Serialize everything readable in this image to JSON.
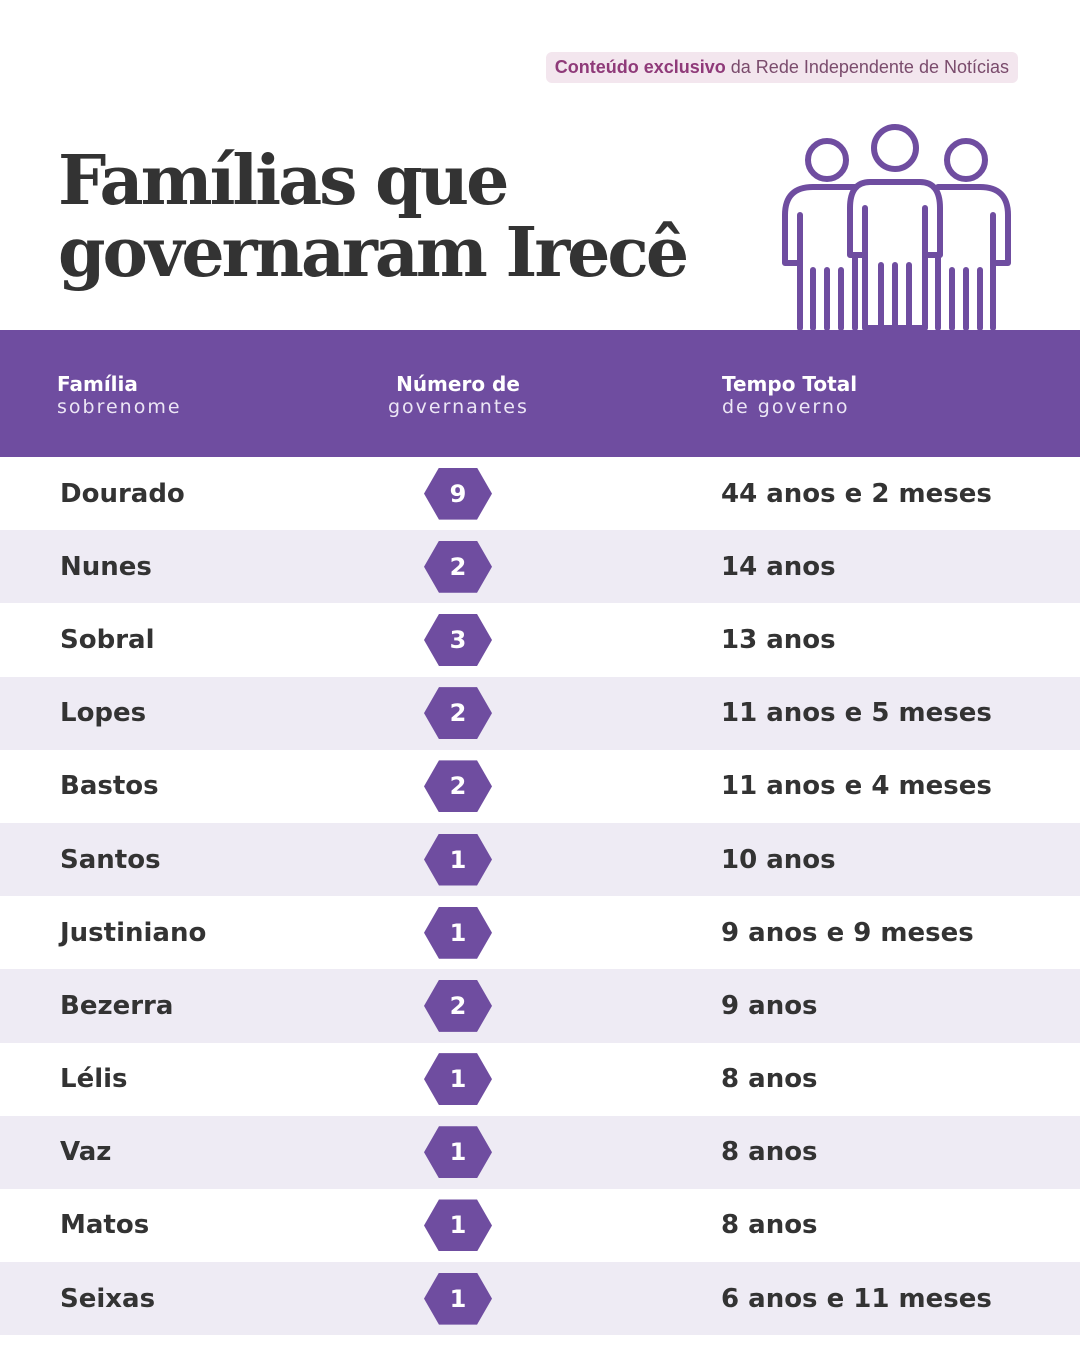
{
  "badge": {
    "bold": "Conteúdo exclusivo",
    "rest": " da Rede Independente de Notícias"
  },
  "title": {
    "line1": "Famílias que",
    "line2": "governaram Irecê"
  },
  "header": {
    "col1": {
      "main": "Família",
      "sub": "sobrenome"
    },
    "col2": {
      "main": "Número de",
      "sub": "governantes"
    },
    "col3": {
      "main": "Tempo Total",
      "sub": "de governo"
    }
  },
  "colors": {
    "accent": "#6f4da0",
    "row_alt": "#eeebf4",
    "badge_bg": "#f3e6ee"
  },
  "icons": {
    "header_icon": "people-group-icon"
  },
  "rows": [
    {
      "family": "Dourado",
      "count": "9",
      "time": "44 anos e 2 meses"
    },
    {
      "family": "Nunes",
      "count": "2",
      "time": "14 anos"
    },
    {
      "family": "Sobral",
      "count": "3",
      "time": "13 anos"
    },
    {
      "family": "Lopes",
      "count": "2",
      "time": "11 anos e 5 meses"
    },
    {
      "family": "Bastos",
      "count": "2",
      "time": "11 anos e 4 meses"
    },
    {
      "family": "Santos",
      "count": "1",
      "time": "10 anos"
    },
    {
      "family": "Justiniano",
      "count": "1",
      "time": "9 anos e 9 meses"
    },
    {
      "family": "Bezerra",
      "count": "2",
      "time": "9 anos"
    },
    {
      "family": "Lélis",
      "count": "1",
      "time": "8 anos"
    },
    {
      "family": "Vaz",
      "count": "1",
      "time": "8 anos"
    },
    {
      "family": "Matos",
      "count": "1",
      "time": "8 anos"
    },
    {
      "family": "Seixas",
      "count": "1",
      "time": "6 anos e 11 meses"
    }
  ]
}
